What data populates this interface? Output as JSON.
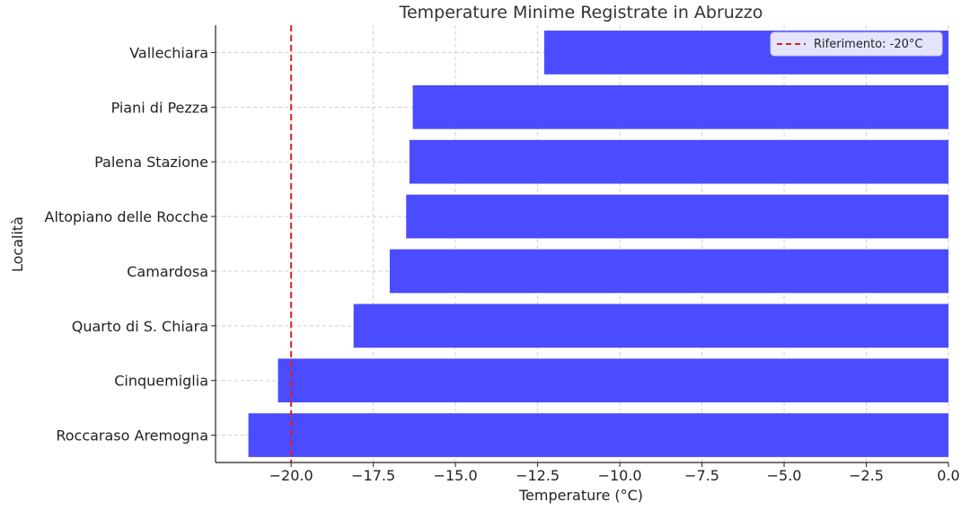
{
  "chart_data": {
    "type": "bar",
    "orientation": "horizontal",
    "title": "Temperature Minime Registrate in Abruzzo",
    "xlabel": "Temperature (°C)",
    "ylabel": "Località",
    "categories": [
      "Vallechiara",
      "Piani di Pezza",
      "Palena Stazione",
      "Altopiano delle Rocche",
      "Camardosa",
      "Quarto di S. Chiara",
      "Cinquemiglia",
      "Roccaraso Aremogna"
    ],
    "values": [
      -12.3,
      -16.3,
      -16.4,
      -16.5,
      -17.0,
      -18.1,
      -20.4,
      -21.3
    ],
    "xlim": [
      -22.3,
      0.0
    ],
    "xticks": [
      -20.0,
      -17.5,
      -15.0,
      -12.5,
      -10.0,
      -7.5,
      -5.0,
      -2.5,
      0.0
    ],
    "xtick_labels": [
      "−20.0",
      "−17.5",
      "−15.0",
      "−12.5",
      "−10.0",
      "−7.5",
      "−5.0",
      "−2.5",
      "0.0"
    ],
    "bar_color": "#4b4bff",
    "reference_line": {
      "value": -20,
      "label": "Riferimento: -20°C",
      "color": "#e02020",
      "style": "dashed"
    },
    "legend_position": "top-right",
    "grid": true
  }
}
